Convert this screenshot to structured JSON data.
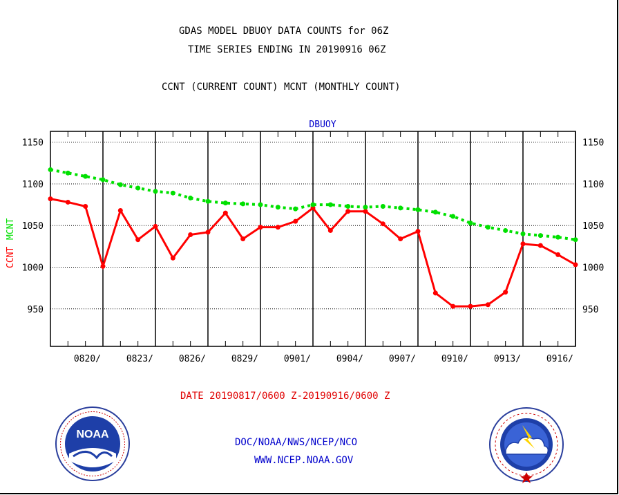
{
  "header": {
    "title_line1": "GDAS MODEL DBUOY DATA COUNTS for 06Z",
    "title_line2": "TIME SERIES ENDING IN 20190916 06Z",
    "subtitle": "CCNT (CURRENT COUNT) MCNT (MONTHLY COUNT)"
  },
  "footer": {
    "date_range": "DATE 20190817/0600 Z-20190916/0600 Z",
    "org_line": "DOC/NOAA/NWS/NCEP/NCO",
    "url_line": "WWW.NCEP.NOAA.GOV"
  },
  "logos": {
    "noaa_text": "NOAA",
    "noaa_ring": "NATIONAL OCEANIC AND ATMOSPHERIC ADMINISTRATION · U.S. DEPARTMENT OF COMMERCE",
    "nws_ring": "NATIONAL WEATHER SERVICE"
  },
  "colors": {
    "ccnt": "#ff0000",
    "mcnt": "#00e000",
    "plot_title": "#0000cc",
    "link_blue": "#0000cc"
  },
  "chart_data": {
    "type": "line",
    "title": "DBUOY",
    "ylabel_series": [
      "CCNT",
      "MCNT"
    ],
    "ylim": [
      905,
      1163
    ],
    "yticks": [
      950,
      1000,
      1050,
      1100,
      1150
    ],
    "x": [
      817,
      818,
      819,
      820,
      821,
      822,
      823,
      824,
      825,
      826,
      827,
      828,
      829,
      830,
      831,
      901,
      902,
      903,
      904,
      905,
      906,
      907,
      908,
      909,
      910,
      911,
      912,
      913,
      914,
      915,
      916
    ],
    "xtick_labels": [
      "0820/",
      "0823/",
      "0826/",
      "0829/",
      "0901/",
      "0904/",
      "0907/",
      "0910/",
      "0913/",
      "0916/"
    ],
    "series": [
      {
        "name": "CCNT",
        "color": "#ff0000",
        "style": "solid",
        "values": [
          1082,
          1078,
          1073,
          1001,
          1068,
          1033,
          1049,
          1011,
          1039,
          1042,
          1065,
          1034,
          1048,
          1048,
          1055,
          1071,
          1044,
          1067,
          1067,
          1052,
          1034,
          1043,
          969,
          953,
          953,
          955,
          970,
          1028,
          1026,
          1015,
          1003
        ]
      },
      {
        "name": "MCNT",
        "color": "#00e000",
        "style": "dotted",
        "values": [
          1117,
          1113,
          1109,
          1105,
          1099,
          1095,
          1091,
          1089,
          1083,
          1079,
          1077,
          1076,
          1075,
          1072,
          1070,
          1075,
          1075,
          1073,
          1072,
          1073,
          1071,
          1069,
          1066,
          1061,
          1053,
          1048,
          1044,
          1040,
          1038,
          1036,
          1033
        ]
      }
    ],
    "grid": true
  }
}
